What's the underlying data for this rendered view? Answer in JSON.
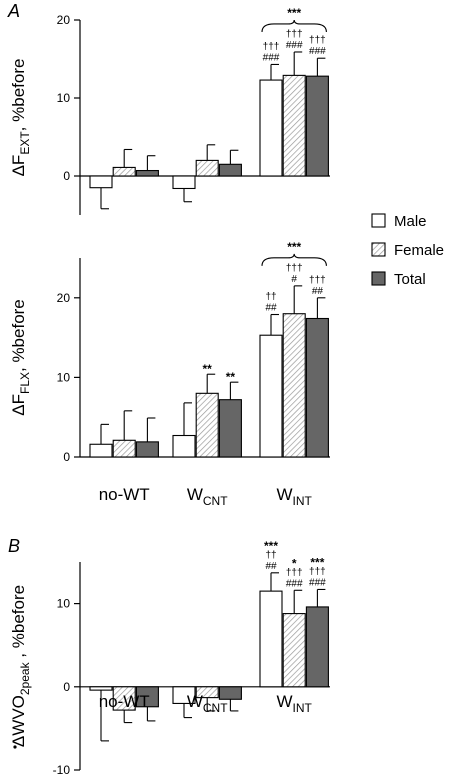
{
  "legend": {
    "items": [
      {
        "label": "Male",
        "fill": "#ffffff"
      },
      {
        "label": "Female",
        "fill": "hatch"
      },
      {
        "label": "Total",
        "fill": "#666666"
      }
    ]
  },
  "colors": {
    "male": "#ffffff",
    "female_hatch": "#999999",
    "total": "#666666",
    "ink": "#000000"
  },
  "chart_data": [
    {
      "type": "bar",
      "panel": "A",
      "ylabel_main": "ΔF",
      "ylabel_sub": "EXT",
      "ylabel_tail": ", %before",
      "xlabel": "",
      "ylim": [
        -5,
        20
      ],
      "yticks": [
        0,
        10,
        20
      ],
      "categories": [
        {
          "main": "no-WT",
          "sub": ""
        },
        {
          "main": "W",
          "sub": "CNT"
        },
        {
          "main": "W",
          "sub": "INT"
        }
      ],
      "show_xlabels": false,
      "series": [
        {
          "name": "Male",
          "values": [
            -1.5,
            -1.6,
            12.3
          ],
          "errors": [
            2.7,
            1.7,
            2.0
          ]
        },
        {
          "name": "Female",
          "values": [
            1.1,
            2.0,
            12.9
          ],
          "errors": [
            2.3,
            2.0,
            3.0
          ]
        },
        {
          "name": "Total",
          "values": [
            0.7,
            1.5,
            12.8
          ],
          "errors": [
            1.9,
            1.8,
            2.3
          ]
        }
      ],
      "annotations": [
        {
          "cat": 2,
          "ser": 0,
          "lines": [
            "†††",
            "###"
          ]
        },
        {
          "cat": 2,
          "ser": 1,
          "lines": [
            "†††",
            "###"
          ]
        },
        {
          "cat": 2,
          "ser": 2,
          "lines": [
            "†††",
            "###"
          ]
        }
      ],
      "bracket": {
        "cat": 2,
        "label": "***"
      }
    },
    {
      "type": "bar",
      "panel": "",
      "ylabel_main": "ΔF",
      "ylabel_sub": "FLX",
      "ylabel_tail": ", %before",
      "xlabel": "",
      "ylim": [
        0,
        25
      ],
      "yticks": [
        0,
        10,
        20
      ],
      "categories": [
        {
          "main": "no-WT",
          "sub": ""
        },
        {
          "main": "W",
          "sub": "CNT"
        },
        {
          "main": "W",
          "sub": "INT"
        }
      ],
      "show_xlabels": true,
      "series": [
        {
          "name": "Male",
          "values": [
            1.6,
            2.7,
            15.3
          ],
          "errors": [
            2.5,
            4.1,
            2.6
          ]
        },
        {
          "name": "Female",
          "values": [
            2.1,
            8.0,
            18.0
          ],
          "errors": [
            3.7,
            2.4,
            3.5
          ]
        },
        {
          "name": "Total",
          "values": [
            1.9,
            7.2,
            17.4
          ],
          "errors": [
            3.0,
            2.2,
            2.6
          ]
        }
      ],
      "annotations": [
        {
          "cat": 1,
          "ser": 1,
          "lines": [
            "**"
          ]
        },
        {
          "cat": 1,
          "ser": 2,
          "lines": [
            "**"
          ]
        },
        {
          "cat": 2,
          "ser": 0,
          "lines": [
            "††",
            "##"
          ]
        },
        {
          "cat": 2,
          "ser": 1,
          "lines": [
            "†††",
            "#"
          ]
        },
        {
          "cat": 2,
          "ser": 2,
          "lines": [
            "†††",
            "##"
          ]
        }
      ],
      "bracket": {
        "cat": 2,
        "label": "***"
      }
    },
    {
      "type": "bar",
      "panel": "B",
      "ylabel_main": "ΔWVO",
      "ylabel_sub": "2peak",
      "ylabel_tail": " , %before",
      "ylabel_dot": true,
      "xlabel": "",
      "ylim": [
        -10,
        15
      ],
      "yticks": [
        -10,
        0,
        10
      ],
      "categories": [
        {
          "main": "no-WT",
          "sub": ""
        },
        {
          "main": "W",
          "sub": "CNT"
        },
        {
          "main": "W",
          "sub": "INT"
        }
      ],
      "show_xlabels": true,
      "series": [
        {
          "name": "Male",
          "values": [
            -0.4,
            -2.0,
            11.5
          ],
          "errors": [
            6.1,
            1.7,
            2.2
          ]
        },
        {
          "name": "Female",
          "values": [
            -2.8,
            -1.3,
            8.8
          ],
          "errors": [
            1.5,
            1.6,
            2.8
          ]
        },
        {
          "name": "Total",
          "values": [
            -2.4,
            -1.5,
            9.6
          ],
          "errors": [
            1.7,
            1.4,
            2.1
          ]
        }
      ],
      "annotations": [
        {
          "cat": 2,
          "ser": 0,
          "lines": [
            "***",
            "††",
            "##"
          ]
        },
        {
          "cat": 2,
          "ser": 1,
          "lines": [
            "*",
            "†††",
            "###"
          ]
        },
        {
          "cat": 2,
          "ser": 2,
          "lines": [
            "***",
            "†††",
            "###"
          ]
        }
      ],
      "bracket": null
    }
  ]
}
